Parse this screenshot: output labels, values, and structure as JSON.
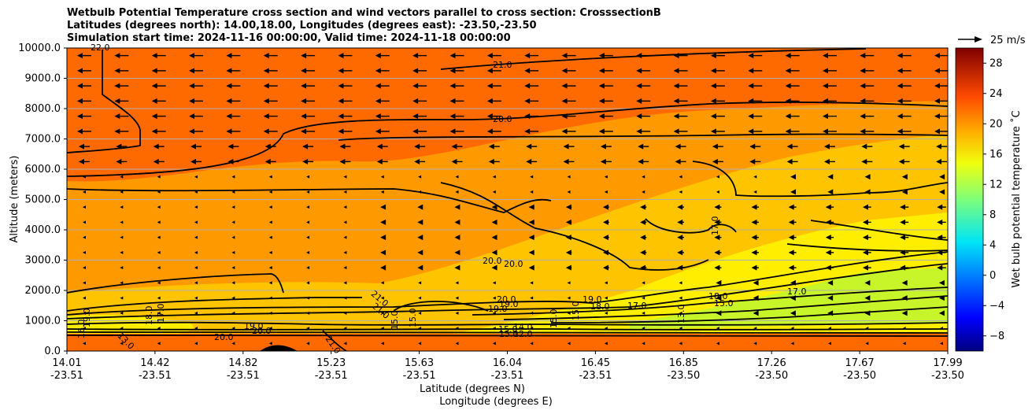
{
  "chart_data": {
    "type": "heatmap",
    "title_lines": [
      "Wetbulb Potential Temperature cross section and wind vectors parallel to cross section: CrosssectionB",
      "Latitudes (degrees north): 14.00,18.00, Longitudes (degrees east): -23.50,-23.50",
      "Simulation start time: 2024-11-16 00:00:00, Valid time: 2024-11-18 00:00:00"
    ],
    "ylabel": "Altitude (meters)",
    "xlabel_lat": "Latitude (degrees N)",
    "xlabel_lon": "Longitude (degrees E)",
    "ylim": [
      0,
      10000
    ],
    "yticks": [
      "0.0",
      "1000.0",
      "2000.0",
      "3000.0",
      "4000.0",
      "5000.0",
      "6000.0",
      "7000.0",
      "8000.0",
      "9000.0",
      "10000.0"
    ],
    "xticks_lat": [
      "14.01",
      "14.42",
      "14.82",
      "15.23",
      "15.63",
      "16.04",
      "16.45",
      "16.85",
      "17.26",
      "17.67",
      "17.99"
    ],
    "xticks_lon": [
      "-23.51",
      "-23.51",
      "-23.51",
      "-23.51",
      "-23.51",
      "-23.51",
      "-23.51",
      "-23.50",
      "-23.50",
      "-23.50",
      "-23.50"
    ],
    "colorbar": {
      "label": "Wet bulb potential temperature ˚C",
      "range": [
        -10,
        30
      ],
      "ticks": [
        "−8",
        "−4",
        "0",
        "4",
        "8",
        "12",
        "16",
        "20",
        "24",
        "28"
      ]
    },
    "quiver_key": "25 m/s",
    "contour_labels": [
      "22.0",
      "21.0",
      "20.0",
      "20.0",
      "20.0",
      "17.0",
      "21.0",
      "20.0",
      "19.0",
      "18.0",
      "17.0",
      "15.0",
      "15.0",
      "13.0",
      "20.0",
      "20.0",
      "19.0",
      "21.0",
      "15.0",
      "15.0",
      "15.0",
      "15.0",
      "13.0",
      "15.0",
      "19.0",
      "18.0",
      "17.0",
      "16.0",
      "14.0",
      "12.0",
      "19.0",
      "18.0",
      "17.0",
      "21.0",
      "19.0"
    ],
    "colors": {
      "upper": "#ff6a00",
      "mid": "#ff9900",
      "lower_mid": "#ffc400",
      "yellow": "#ffee00",
      "green_yellow": "#c8f52a"
    }
  }
}
